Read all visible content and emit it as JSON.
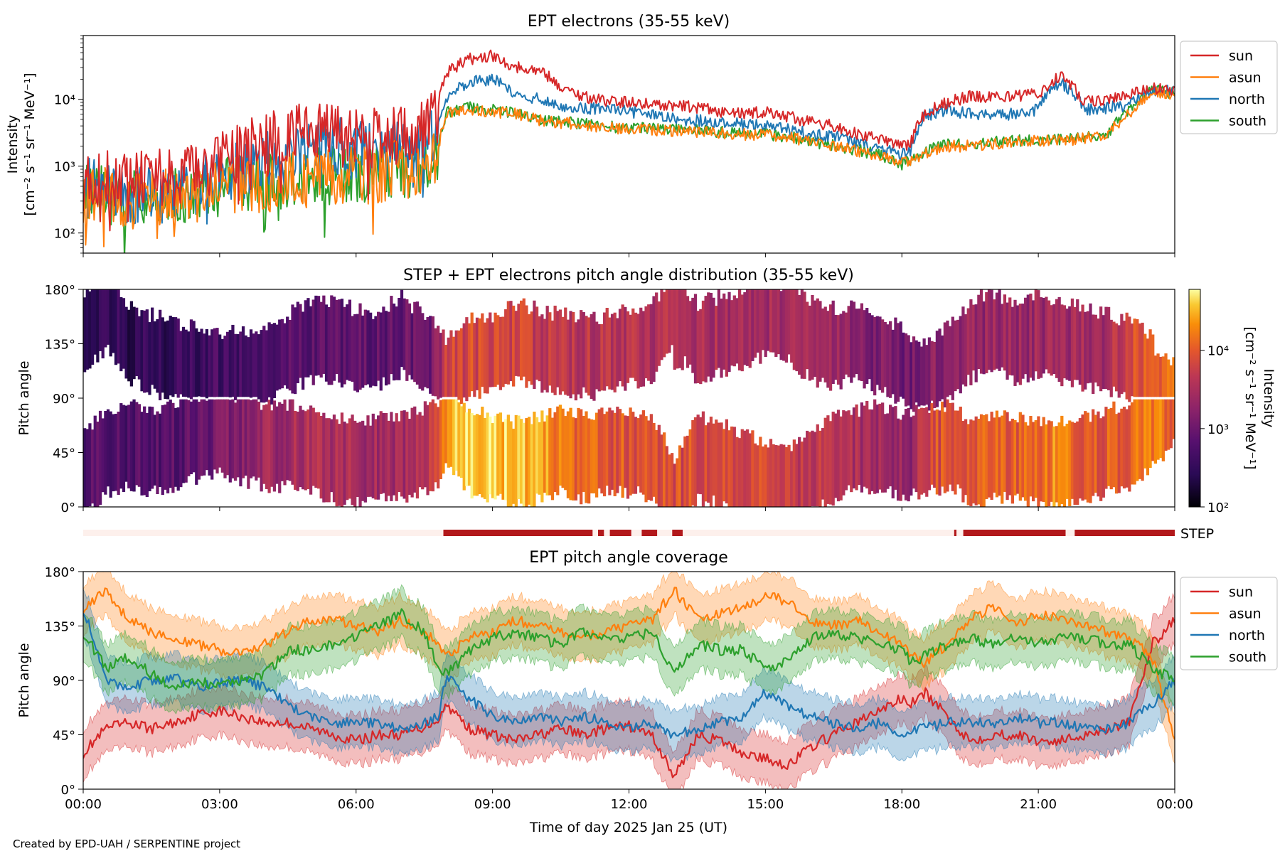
{
  "chart_data": [
    {
      "type": "line",
      "title": "EPT electrons (35-55 keV)",
      "ylabel_line1": "Intensity",
      "ylabel_line2": "[cm⁻² s⁻¹ sr⁻¹ MeV⁻¹]",
      "yscale": "log",
      "ylim": [
        50,
        90000
      ],
      "yticks": [
        {
          "value": 100,
          "label": "10²"
        },
        {
          "value": 1000,
          "label": "10³"
        },
        {
          "value": 10000,
          "label": "10⁴"
        }
      ],
      "xlim": [
        0,
        24
      ],
      "legend_position": "outside-right",
      "x_hours": [
        0,
        0.5,
        1,
        1.5,
        2,
        2.5,
        3,
        3.5,
        4,
        4.5,
        5,
        5.5,
        6,
        6.5,
        7,
        7.5,
        7.8,
        8,
        8.5,
        9,
        9.5,
        10,
        10.5,
        11,
        11.5,
        12,
        12.5,
        13,
        13.5,
        14,
        14.5,
        15,
        15.5,
        16,
        16.5,
        17,
        17.5,
        18,
        18.2,
        18.5,
        19,
        19.5,
        20,
        20.5,
        21,
        21.5,
        22,
        22.5,
        23,
        23.5,
        24
      ],
      "series": [
        {
          "name": "sun",
          "color": "#d62728",
          "values": [
            600,
            650,
            600,
            650,
            700,
            800,
            1100,
            1700,
            2300,
            2800,
            3200,
            3500,
            2800,
            2600,
            3000,
            3500,
            8000,
            25000,
            40000,
            45000,
            30000,
            28000,
            15000,
            11000,
            9500,
            9000,
            8500,
            8000,
            7500,
            6500,
            6000,
            6500,
            5500,
            4500,
            4000,
            3000,
            2500,
            2000,
            2200,
            6000,
            9000,
            11000,
            11000,
            11000,
            12000,
            22000,
            9000,
            10000,
            12000,
            15000,
            13000
          ]
        },
        {
          "name": "asun",
          "color": "#ff7f0e",
          "values": [
            400,
            350,
            300,
            330,
            350,
            400,
            450,
            500,
            550,
            600,
            650,
            700,
            750,
            800,
            900,
            1000,
            1500,
            6000,
            7000,
            6500,
            6000,
            5000,
            4500,
            4200,
            3800,
            3600,
            3500,
            3400,
            3300,
            3200,
            3000,
            2900,
            2700,
            2300,
            2000,
            1700,
            1400,
            1100,
            1200,
            1600,
            2000,
            2000,
            2200,
            2300,
            2400,
            2400,
            2600,
            2800,
            6000,
            13000,
            12000
          ]
        },
        {
          "name": "north",
          "color": "#1f77b4",
          "values": [
            500,
            450,
            350,
            350,
            400,
            500,
            700,
            900,
            1200,
            1500,
            1800,
            2000,
            1700,
            1600,
            1800,
            2000,
            4000,
            11000,
            18000,
            20000,
            12000,
            10000,
            8000,
            7500,
            7000,
            6500,
            6000,
            5000,
            4800,
            4500,
            4200,
            4000,
            3600,
            3000,
            2800,
            2200,
            1800,
            1500,
            1700,
            5500,
            7000,
            6000,
            6000,
            6000,
            7000,
            18000,
            7000,
            7500,
            8000,
            14000,
            13000
          ]
        },
        {
          "name": "south",
          "color": "#2ca02c",
          "values": [
            420,
            380,
            320,
            340,
            360,
            420,
            470,
            520,
            560,
            610,
            660,
            720,
            760,
            820,
            920,
            1050,
            1600,
            6500,
            7500,
            7000,
            6200,
            5200,
            4600,
            4300,
            3900,
            3700,
            3600,
            3500,
            3400,
            3300,
            3100,
            3000,
            2800,
            2350,
            2050,
            1750,
            1450,
            1050,
            1250,
            1650,
            2100,
            2100,
            2300,
            2400,
            2500,
            2500,
            2700,
            2900,
            6500,
            13500,
            12500
          ]
        }
      ]
    },
    {
      "type": "heatmap",
      "title": "STEP + EPT electrons pitch angle distribution (35-55 keV)",
      "ylabel": "Pitch angle",
      "ylim": [
        0,
        180
      ],
      "yticks": [
        {
          "value": 0,
          "label": "0°"
        },
        {
          "value": 45,
          "label": "45°"
        },
        {
          "value": 90,
          "label": "90°"
        },
        {
          "value": 135,
          "label": "135°"
        },
        {
          "value": 180,
          "label": "180°"
        }
      ],
      "xlim": [
        0,
        24
      ],
      "colorbar": {
        "label_line1": "Intensity",
        "label_line2": "[cm⁻² s⁻¹ sr⁻¹ MeV⁻¹]",
        "scale": "log",
        "range": [
          100,
          60000
        ],
        "colormap": "inferno",
        "ticks": [
          {
            "value": 100,
            "label": "10²"
          },
          {
            "value": 1000,
            "label": "10³"
          },
          {
            "value": 10000,
            "label": "10⁴"
          }
        ]
      }
    },
    {
      "type": "bar",
      "label": "STEP",
      "active_color": "#b2181b",
      "inactive_color": "#fdf0ec",
      "xlim": [
        0,
        24
      ],
      "active_intervals": [
        [
          7.92,
          11.2
        ],
        [
          11.32,
          11.45
        ],
        [
          11.58,
          12.05
        ],
        [
          12.28,
          12.62
        ],
        [
          12.95,
          13.18
        ],
        [
          19.15,
          19.2
        ],
        [
          19.35,
          21.6
        ],
        [
          21.8,
          24
        ]
      ]
    },
    {
      "type": "line",
      "title": "EPT pitch angle coverage",
      "ylabel": "Pitch angle",
      "xlabel": "Time of day 2025 Jan 25 (UT)",
      "ylim": [
        0,
        180
      ],
      "yticks": [
        {
          "value": 0,
          "label": "0°"
        },
        {
          "value": 45,
          "label": "45°"
        },
        {
          "value": 90,
          "label": "90°"
        },
        {
          "value": 135,
          "label": "135°"
        },
        {
          "value": 180,
          "label": "180°"
        }
      ],
      "xlim": [
        0,
        24
      ],
      "xticks": [
        {
          "value": 0,
          "label": "00:00"
        },
        {
          "value": 3,
          "label": "03:00"
        },
        {
          "value": 6,
          "label": "06:00"
        },
        {
          "value": 9,
          "label": "09:00"
        },
        {
          "value": 12,
          "label": "12:00"
        },
        {
          "value": 15,
          "label": "15:00"
        },
        {
          "value": 18,
          "label": "18:00"
        },
        {
          "value": 21,
          "label": "21:00"
        },
        {
          "value": 24,
          "label": "00:00"
        }
      ],
      "legend_position": "outside-right",
      "band_halfwidth_deg": 20,
      "x_hours": [
        0,
        0.5,
        1,
        1.5,
        2,
        2.5,
        3,
        3.5,
        4,
        4.5,
        5,
        5.5,
        6,
        6.5,
        7,
        7.5,
        7.8,
        8,
        8.5,
        9,
        9.5,
        10,
        10.5,
        11,
        11.5,
        12,
        12.5,
        13,
        13.5,
        14,
        14.5,
        15,
        15.5,
        16,
        16.5,
        17,
        17.5,
        18,
        18.2,
        18.5,
        19,
        19.5,
        20,
        20.5,
        21,
        21.5,
        22,
        22.5,
        23,
        23.5,
        24
      ],
      "series": [
        {
          "name": "sun",
          "color": "#d62728",
          "values": [
            30,
            50,
            55,
            50,
            55,
            62,
            65,
            60,
            55,
            55,
            50,
            45,
            40,
            45,
            45,
            52,
            58,
            70,
            50,
            45,
            40,
            45,
            50,
            45,
            50,
            52,
            45,
            10,
            45,
            40,
            30,
            25,
            20,
            35,
            45,
            55,
            65,
            75,
            70,
            80,
            60,
            40,
            45,
            45,
            40,
            40,
            45,
            50,
            55,
            120,
            140
          ]
        },
        {
          "name": "asun",
          "color": "#ff7f0e",
          "values": [
            150,
            165,
            140,
            130,
            125,
            120,
            115,
            115,
            120,
            130,
            140,
            140,
            135,
            130,
            140,
            130,
            120,
            110,
            125,
            130,
            140,
            135,
            130,
            125,
            130,
            135,
            140,
            165,
            140,
            145,
            150,
            160,
            155,
            140,
            135,
            140,
            130,
            120,
            110,
            105,
            120,
            140,
            150,
            135,
            145,
            140,
            135,
            130,
            125,
            110,
            40
          ]
        },
        {
          "name": "north",
          "color": "#1f77b4",
          "values": [
            150,
            90,
            85,
            90,
            92,
            85,
            88,
            90,
            85,
            70,
            60,
            55,
            55,
            55,
            50,
            55,
            60,
            95,
            75,
            60,
            55,
            60,
            55,
            60,
            55,
            50,
            55,
            45,
            50,
            55,
            60,
            80,
            70,
            60,
            55,
            50,
            55,
            45,
            50,
            50,
            55,
            55,
            55,
            60,
            55,
            55,
            50,
            50,
            55,
            70,
            90
          ]
        },
        {
          "name": "south",
          "color": "#2ca02c",
          "values": [
            130,
            100,
            110,
            95,
            85,
            90,
            85,
            90,
            95,
            115,
            115,
            120,
            125,
            135,
            145,
            130,
            100,
            95,
            115,
            125,
            130,
            125,
            120,
            130,
            125,
            125,
            130,
            95,
            120,
            115,
            115,
            100,
            105,
            125,
            130,
            125,
            120,
            115,
            105,
            110,
            120,
            125,
            120,
            125,
            120,
            125,
            125,
            120,
            120,
            100,
            90
          ]
        }
      ]
    }
  ],
  "footer": {
    "credit": "Created by EPD-UAH / SERPENTINE project"
  }
}
